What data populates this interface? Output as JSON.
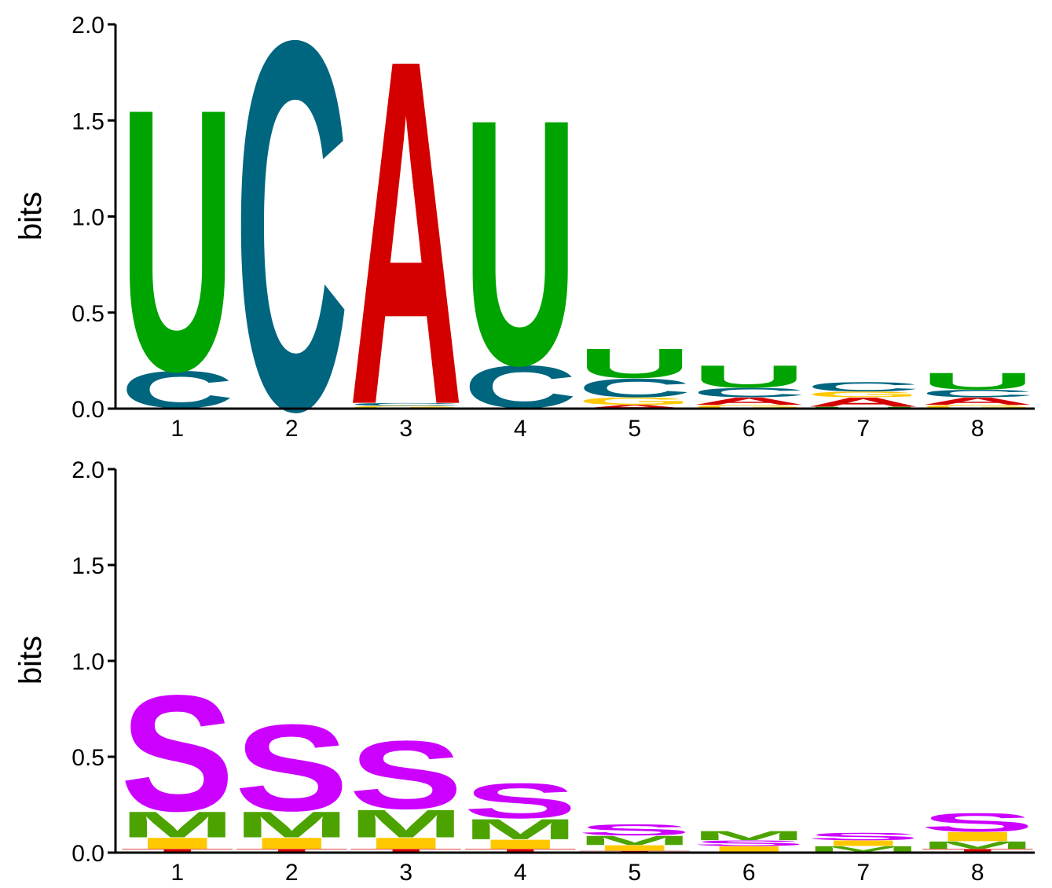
{
  "chart_data": [
    {
      "type": "sequence-logo",
      "panel": "top",
      "ylabel": "bits",
      "ylim": [
        0,
        2.0
      ],
      "yticks": [
        "0.0",
        "0.5",
        "1.0",
        "1.5",
        "2.0"
      ],
      "positions": [
        "1",
        "2",
        "3",
        "4",
        "5",
        "6",
        "7",
        "8"
      ],
      "colors": {
        "A": "#d40000",
        "C": "#00657f",
        "G": "#ffc800",
        "U": "#00a400"
      },
      "columns": [
        [
          {
            "letter": "G",
            "bits": 0.005
          },
          {
            "letter": "C",
            "bits": 0.2
          },
          {
            "letter": "U",
            "bits": 1.42
          }
        ],
        [
          {
            "letter": "U",
            "bits": 0.003
          },
          {
            "letter": "C",
            "bits": 2.0
          }
        ],
        [
          {
            "letter": "G",
            "bits": 0.015
          },
          {
            "letter": "C",
            "bits": 0.015
          },
          {
            "letter": "A",
            "bits": 1.87
          }
        ],
        [
          {
            "letter": "G",
            "bits": 0.005
          },
          {
            "letter": "C",
            "bits": 0.23
          },
          {
            "letter": "U",
            "bits": 1.33
          }
        ],
        [
          {
            "letter": "A",
            "bits": 0.02
          },
          {
            "letter": "G",
            "bits": 0.04
          },
          {
            "letter": "C",
            "bits": 0.1
          },
          {
            "letter": "U",
            "bits": 0.16
          }
        ],
        [
          {
            "letter": "G",
            "bits": 0.02
          },
          {
            "letter": "A",
            "bits": 0.04
          },
          {
            "letter": "C",
            "bits": 0.05
          },
          {
            "letter": "U",
            "bits": 0.12
          }
        ],
        [
          {
            "letter": "U",
            "bits": 0.01
          },
          {
            "letter": "A",
            "bits": 0.05
          },
          {
            "letter": "G",
            "bits": 0.03
          },
          {
            "letter": "C",
            "bits": 0.05
          }
        ],
        [
          {
            "letter": "G",
            "bits": 0.02
          },
          {
            "letter": "A",
            "bits": 0.04
          },
          {
            "letter": "C",
            "bits": 0.04
          },
          {
            "letter": "U",
            "bits": 0.09
          }
        ]
      ]
    },
    {
      "type": "sequence-logo",
      "panel": "bottom",
      "ylabel": "bits",
      "ylim": [
        0,
        2.0
      ],
      "yticks": [
        "0.0",
        "0.5",
        "1.0",
        "1.5",
        "2.0"
      ],
      "positions": [
        "1",
        "2",
        "3",
        "4",
        "5",
        "6",
        "7",
        "8"
      ],
      "colors": {
        "S": "#cc00ff",
        "M": "#4ca300",
        "I": "#ffc800",
        "T": "#d40000"
      },
      "columns": [
        [
          {
            "letter": "T",
            "bits": 0.02
          },
          {
            "letter": "I",
            "bits": 0.06
          },
          {
            "letter": "M",
            "bits": 0.14
          },
          {
            "letter": "S",
            "bits": 0.63
          }
        ],
        [
          {
            "letter": "T",
            "bits": 0.02
          },
          {
            "letter": "I",
            "bits": 0.06
          },
          {
            "letter": "M",
            "bits": 0.14
          },
          {
            "letter": "S",
            "bits": 0.47
          }
        ],
        [
          {
            "letter": "T",
            "bits": 0.02
          },
          {
            "letter": "I",
            "bits": 0.06
          },
          {
            "letter": "M",
            "bits": 0.15
          },
          {
            "letter": "S",
            "bits": 0.37
          }
        ],
        [
          {
            "letter": "T",
            "bits": 0.02
          },
          {
            "letter": "I",
            "bits": 0.05
          },
          {
            "letter": "M",
            "bits": 0.11
          },
          {
            "letter": "S",
            "bits": 0.19
          }
        ],
        [
          {
            "letter": "T",
            "bits": 0.01
          },
          {
            "letter": "I",
            "bits": 0.03
          },
          {
            "letter": "M",
            "bits": 0.05
          },
          {
            "letter": "S",
            "bits": 0.06
          }
        ],
        [
          {
            "letter": "T",
            "bits": 0.005
          },
          {
            "letter": "I",
            "bits": 0.03
          },
          {
            "letter": "S",
            "bits": 0.03
          },
          {
            "letter": "M",
            "bits": 0.05
          }
        ],
        [
          {
            "letter": "T",
            "bits": 0.005
          },
          {
            "letter": "M",
            "bits": 0.03
          },
          {
            "letter": "I",
            "bits": 0.03
          },
          {
            "letter": "S",
            "bits": 0.04
          }
        ],
        [
          {
            "letter": "T",
            "bits": 0.02
          },
          {
            "letter": "M",
            "bits": 0.04
          },
          {
            "letter": "I",
            "bits": 0.05
          },
          {
            "letter": "S",
            "bits": 0.1
          }
        ]
      ]
    }
  ]
}
